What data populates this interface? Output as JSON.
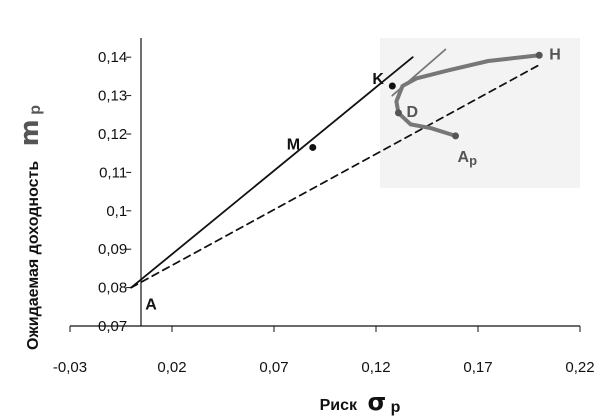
{
  "chart_data": {
    "type": "line",
    "ylabel": "Ожидаемая доходность",
    "ylabel_symbol": "m",
    "ylabel_subscript": "p",
    "xlabel": "Риск",
    "xlabel_symbol": "σ",
    "xlabel_subscript": "p",
    "xlim": [
      -0.03,
      0.22
    ],
    "ylim": [
      0.07,
      0.145
    ],
    "x_ticks": [
      -0.03,
      0.02,
      0.07,
      0.12,
      0.17,
      0.22
    ],
    "x_tick_labels": [
      "-0,03",
      "0,02",
      "0,07",
      "0,12",
      "0,17",
      "0,22"
    ],
    "y_ticks": [
      0.07,
      0.08,
      0.09,
      0.1,
      0.11,
      0.12,
      0.13,
      0.14
    ],
    "y_tick_labels": [
      "0,07",
      "0,08",
      "0,09",
      "0,1",
      "0,11",
      "0,12",
      "0,13",
      "0,14"
    ],
    "grid": false,
    "legend": "none",
    "series": [
      {
        "style": "solid",
        "color": "#111111",
        "x": [
          0,
          0.138
        ],
        "y": [
          0.08,
          0.14
        ]
      },
      {
        "style": "solid",
        "color": "#777777",
        "x": [
          0.128,
          0.154
        ],
        "y": [
          0.13,
          0.142
        ]
      },
      {
        "style": "dashed",
        "color": "#111111",
        "x": [
          0,
          0.2
        ],
        "y": [
          0.08,
          0.138
        ]
      },
      {
        "style": "thick",
        "color": "#777777",
        "x": [
          0.2,
          0.175,
          0.155,
          0.14,
          0.133,
          0.13,
          0.131,
          0.137,
          0.147,
          0.159
        ],
        "y": [
          0.1405,
          0.139,
          0.1365,
          0.1345,
          0.1325,
          0.1285,
          0.1255,
          0.1225,
          0.1215,
          0.1195
        ]
      }
    ],
    "points": [
      {
        "label": "A",
        "x": 0.0,
        "y": 0.08,
        "marker": false,
        "label_color": "#111111"
      },
      {
        "label": "M",
        "x": 0.089,
        "y": 0.1165,
        "marker": true,
        "label_color": "#111111"
      },
      {
        "label": "K",
        "x": 0.128,
        "y": 0.1325,
        "marker": true,
        "label_color": "#111111"
      },
      {
        "label": "D",
        "x": 0.131,
        "y": 0.1255,
        "marker": true,
        "label_color": "#555555"
      },
      {
        "label": "A",
        "label_sub": "p",
        "x": 0.159,
        "y": 0.1195,
        "marker": true,
        "label_color": "#555555"
      },
      {
        "label": "H",
        "x": 0.2,
        "y": 0.1405,
        "marker": true,
        "label_color": "#555555"
      }
    ]
  }
}
